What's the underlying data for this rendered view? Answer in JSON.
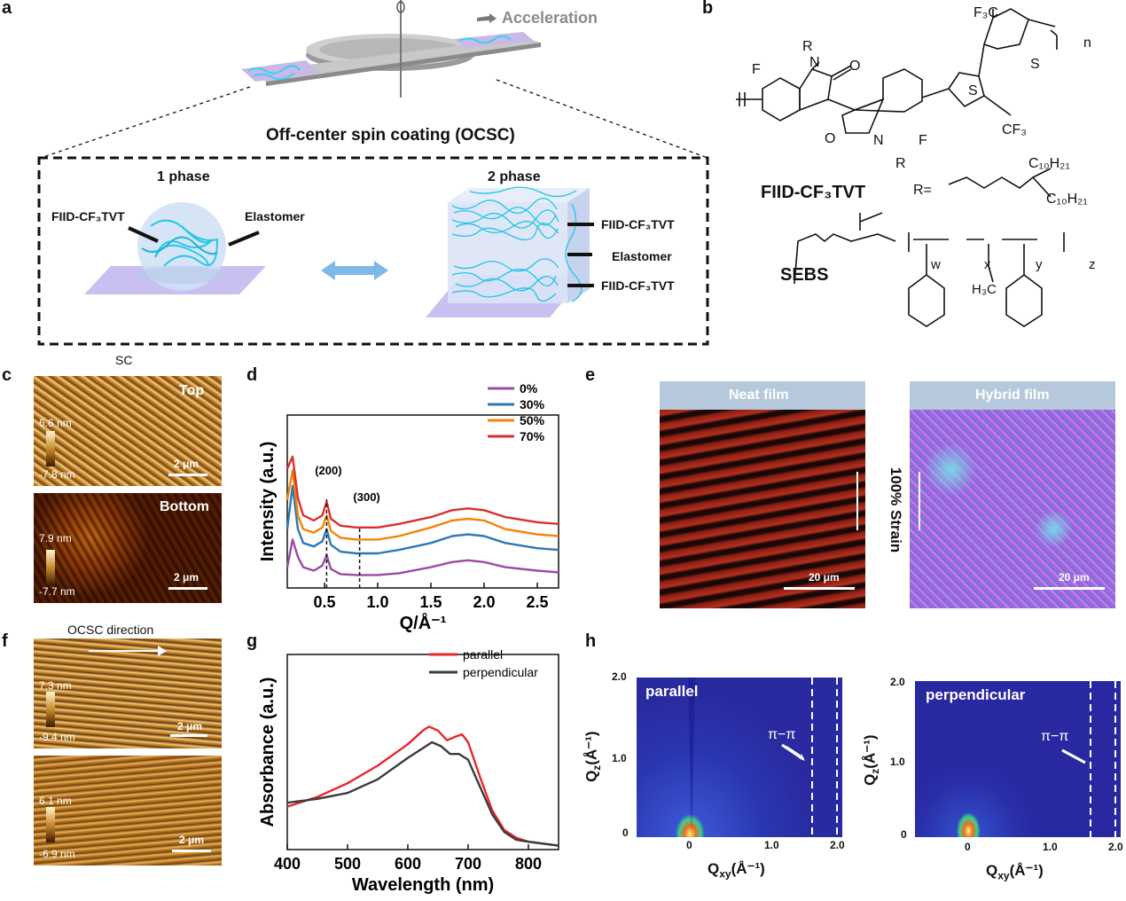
{
  "panel_labels": {
    "a": "a",
    "b": "b",
    "c": "c",
    "d": "d",
    "e": "e",
    "f": "f",
    "g": "g",
    "h": "h"
  },
  "panel_a": {
    "acceleration": "Acceleration",
    "title": "Off-center spin coating (OCSC)",
    "phase1": "1 phase",
    "phase2": "2 phase",
    "label_polymer_left": "FIID-CF₃TVT",
    "label_elastomer_left": "Elastomer",
    "label_polymer_top": "FIID-CF₃TVT",
    "label_elastomer_mid": "Elastomer",
    "label_polymer_bottom": "FIID-CF₃TVT"
  },
  "panel_b": {
    "polymer_name": "FIID-CF₃TVT",
    "elastomer_name": "SEBS",
    "atoms": {
      "F": "F",
      "O": "O",
      "N": "N",
      "R": "R",
      "S": "S",
      "CF3": "CF₃",
      "F3C": "F₃C",
      "n": "n"
    },
    "r_group": "R=",
    "c10h21": "C₁₀H₂₁",
    "sebs_subscripts": {
      "w": "w",
      "x": "x",
      "y": "y",
      "z": "z"
    },
    "h3c": "H₃C"
  },
  "panel_c": {
    "header": "SC",
    "top_label": "Top",
    "bottom_label": "Bottom",
    "top_max": "6.6 nm",
    "top_min": "-7.8 nm",
    "bottom_max": "7.9 nm",
    "bottom_min": "-7.7 nm",
    "scale": "2 μm"
  },
  "panel_e": {
    "neat": "Neat film",
    "hybrid": "Hybrid film",
    "strain": "100% Strain",
    "scale": "20 μm"
  },
  "panel_f": {
    "header": "OCSC direction",
    "top_max": "7.3 nm",
    "top_min": "-9.4 nm",
    "bottom_max": "6.1 nm",
    "bottom_min": "-6.9 nm",
    "scale": "2 μm"
  },
  "panel_h": {
    "left_title": "parallel",
    "right_title": "perpendicular",
    "pipi": "π−π",
    "xlabel": "Q",
    "xlabel_sub": "xy",
    "xlabel_unit": "(Å⁻¹)",
    "ylabel": "Q",
    "ylabel_sub": "z",
    "ylabel_unit": "(Å⁻¹)",
    "yticks": [
      "2.0",
      "1.0",
      "0"
    ],
    "xticks": [
      "0",
      "1.0",
      "2.0"
    ]
  },
  "chart_data": [
    {
      "id": "d",
      "type": "line",
      "title": "",
      "xlabel": "Q/Å⁻¹",
      "ylabel": "Intensity (a.u.)",
      "xlim": [
        0.15,
        2.7
      ],
      "ylim": [
        0,
        10
      ],
      "xticks": [
        0.5,
        1.0,
        1.5,
        2.0,
        2.5
      ],
      "xtick_labels": [
        "0.5",
        "1.0",
        "1.5",
        "2.0",
        "2.5"
      ],
      "annotations": [
        {
          "text": "(200)",
          "x": 0.52
        },
        {
          "text": "(300)",
          "x": 0.83
        }
      ],
      "legend_position": "top-right",
      "series": [
        {
          "name": "0%",
          "color": "#9b4aa6",
          "x": [
            0.15,
            0.2,
            0.25,
            0.3,
            0.4,
            0.48,
            0.52,
            0.56,
            0.65,
            0.8,
            1.0,
            1.2,
            1.5,
            1.7,
            1.85,
            2.0,
            2.2,
            2.5,
            2.7
          ],
          "y": [
            1.2,
            2.8,
            1.8,
            1.2,
            1.0,
            1.3,
            1.9,
            1.1,
            0.8,
            0.75,
            0.75,
            0.85,
            1.2,
            1.5,
            1.6,
            1.5,
            1.2,
            1.0,
            0.9
          ]
        },
        {
          "name": "30%",
          "color": "#2f77b4",
          "x": [
            0.15,
            0.2,
            0.25,
            0.3,
            0.4,
            0.48,
            0.52,
            0.56,
            0.65,
            0.8,
            1.0,
            1.2,
            1.5,
            1.7,
            1.85,
            2.0,
            2.2,
            2.5,
            2.7
          ],
          "y": [
            3.4,
            5.9,
            3.4,
            2.6,
            2.4,
            2.7,
            3.4,
            2.5,
            2.1,
            2.0,
            2.0,
            2.2,
            2.6,
            3.0,
            3.1,
            3.0,
            2.6,
            2.3,
            2.2
          ]
        },
        {
          "name": "50%",
          "color": "#f5820a",
          "x": [
            0.15,
            0.2,
            0.25,
            0.3,
            0.4,
            0.48,
            0.52,
            0.56,
            0.65,
            0.8,
            1.0,
            1.2,
            1.5,
            1.7,
            1.85,
            2.0,
            2.2,
            2.5,
            2.7
          ],
          "y": [
            5.1,
            6.8,
            4.2,
            3.4,
            3.2,
            3.5,
            4.2,
            3.3,
            2.9,
            2.8,
            2.8,
            3.0,
            3.5,
            3.9,
            4.0,
            3.9,
            3.4,
            3.1,
            3.0
          ]
        },
        {
          "name": "70%",
          "color": "#d9302c",
          "x": [
            0.15,
            0.2,
            0.25,
            0.3,
            0.4,
            0.48,
            0.52,
            0.56,
            0.65,
            0.8,
            1.0,
            1.2,
            1.5,
            1.7,
            1.85,
            2.0,
            2.2,
            2.5,
            2.7
          ],
          "y": [
            6.9,
            7.6,
            5.2,
            4.2,
            3.9,
            4.2,
            5.0,
            4.0,
            3.6,
            3.5,
            3.5,
            3.7,
            4.1,
            4.5,
            4.6,
            4.5,
            4.1,
            3.8,
            3.7
          ]
        }
      ]
    },
    {
      "id": "g",
      "type": "line",
      "title": "",
      "xlabel": "Wavelength (nm)",
      "ylabel": "Absorbance (a.u.)",
      "xlim": [
        400,
        850
      ],
      "ylim": [
        0,
        10
      ],
      "xticks": [
        400,
        500,
        600,
        700,
        800
      ],
      "xtick_labels": [
        "400",
        "500",
        "600",
        "700",
        "800"
      ],
      "legend_position": "top-right",
      "series": [
        {
          "name": "parallel",
          "color": "#e8262f",
          "x": [
            400,
            450,
            500,
            550,
            600,
            625,
            635,
            650,
            665,
            680,
            690,
            700,
            720,
            740,
            760,
            780,
            800,
            850
          ],
          "y": [
            2.2,
            2.7,
            3.4,
            4.3,
            5.4,
            6.1,
            6.3,
            6.1,
            5.6,
            5.8,
            5.9,
            5.5,
            3.7,
            2.0,
            1.0,
            0.6,
            0.4,
            0.2
          ]
        },
        {
          "name": "perpendicular",
          "color": "#3a3a3a",
          "x": [
            400,
            450,
            500,
            550,
            600,
            625,
            640,
            655,
            670,
            685,
            700,
            720,
            740,
            760,
            780,
            800,
            850
          ],
          "y": [
            2.4,
            2.6,
            2.9,
            3.6,
            4.7,
            5.2,
            5.5,
            5.3,
            4.9,
            4.9,
            4.6,
            3.2,
            1.8,
            0.9,
            0.5,
            0.4,
            0.2
          ]
        }
      ]
    }
  ]
}
